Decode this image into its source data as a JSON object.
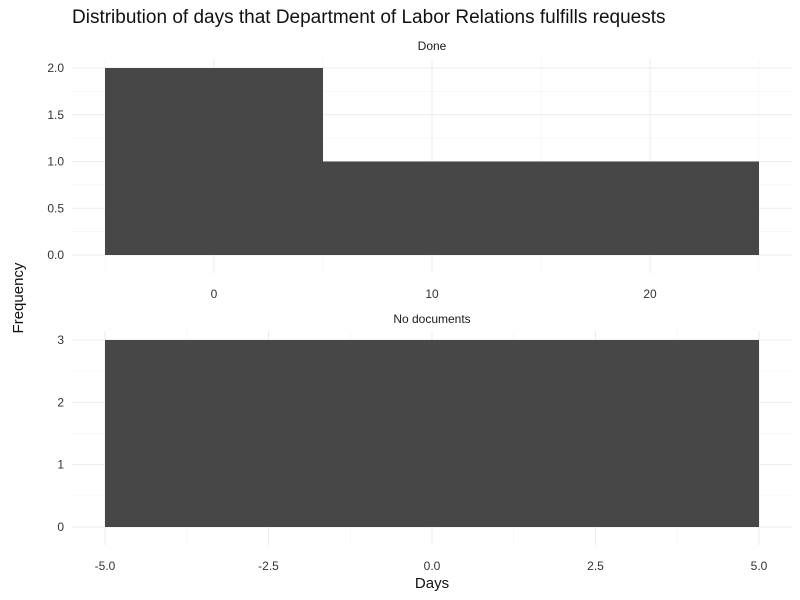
{
  "chart_data": {
    "type": "bar",
    "title": "Distribution of days that Department of Labor Relations fulfills requests",
    "xlabel": "Days",
    "ylabel": "Frequency",
    "grid": true,
    "facets": [
      {
        "label": "Done",
        "bar_color": "#474747",
        "x_range": [
          -5,
          25
        ],
        "y_range": [
          0,
          2
        ],
        "x_ticks": [
          0,
          10,
          20
        ],
        "x_tick_labels": [
          "0",
          "10",
          "20"
        ],
        "y_ticks": [
          0,
          0.5,
          1,
          1.5,
          2
        ],
        "y_tick_labels": [
          "0.0",
          "0.5",
          "1.0",
          "1.5",
          "2.0"
        ],
        "bins": [
          {
            "start": -5,
            "end": 5,
            "count": 2
          },
          {
            "start": 5,
            "end": 15,
            "count": 1
          },
          {
            "start": 15,
            "end": 25,
            "count": 1
          }
        ]
      },
      {
        "label": "No documents",
        "bar_color": "#474747",
        "x_range": [
          -5,
          5
        ],
        "y_range": [
          0,
          3
        ],
        "x_ticks": [
          -5,
          -2.5,
          0,
          2.5,
          5
        ],
        "x_tick_labels": [
          "-5.0",
          "-2.5",
          "0.0",
          "2.5",
          "5.0"
        ],
        "y_ticks": [
          0,
          1,
          2,
          3
        ],
        "y_tick_labels": [
          "0",
          "1",
          "2",
          "3"
        ],
        "bins": [
          {
            "start": -5,
            "end": 5,
            "count": 3
          }
        ]
      }
    ]
  }
}
